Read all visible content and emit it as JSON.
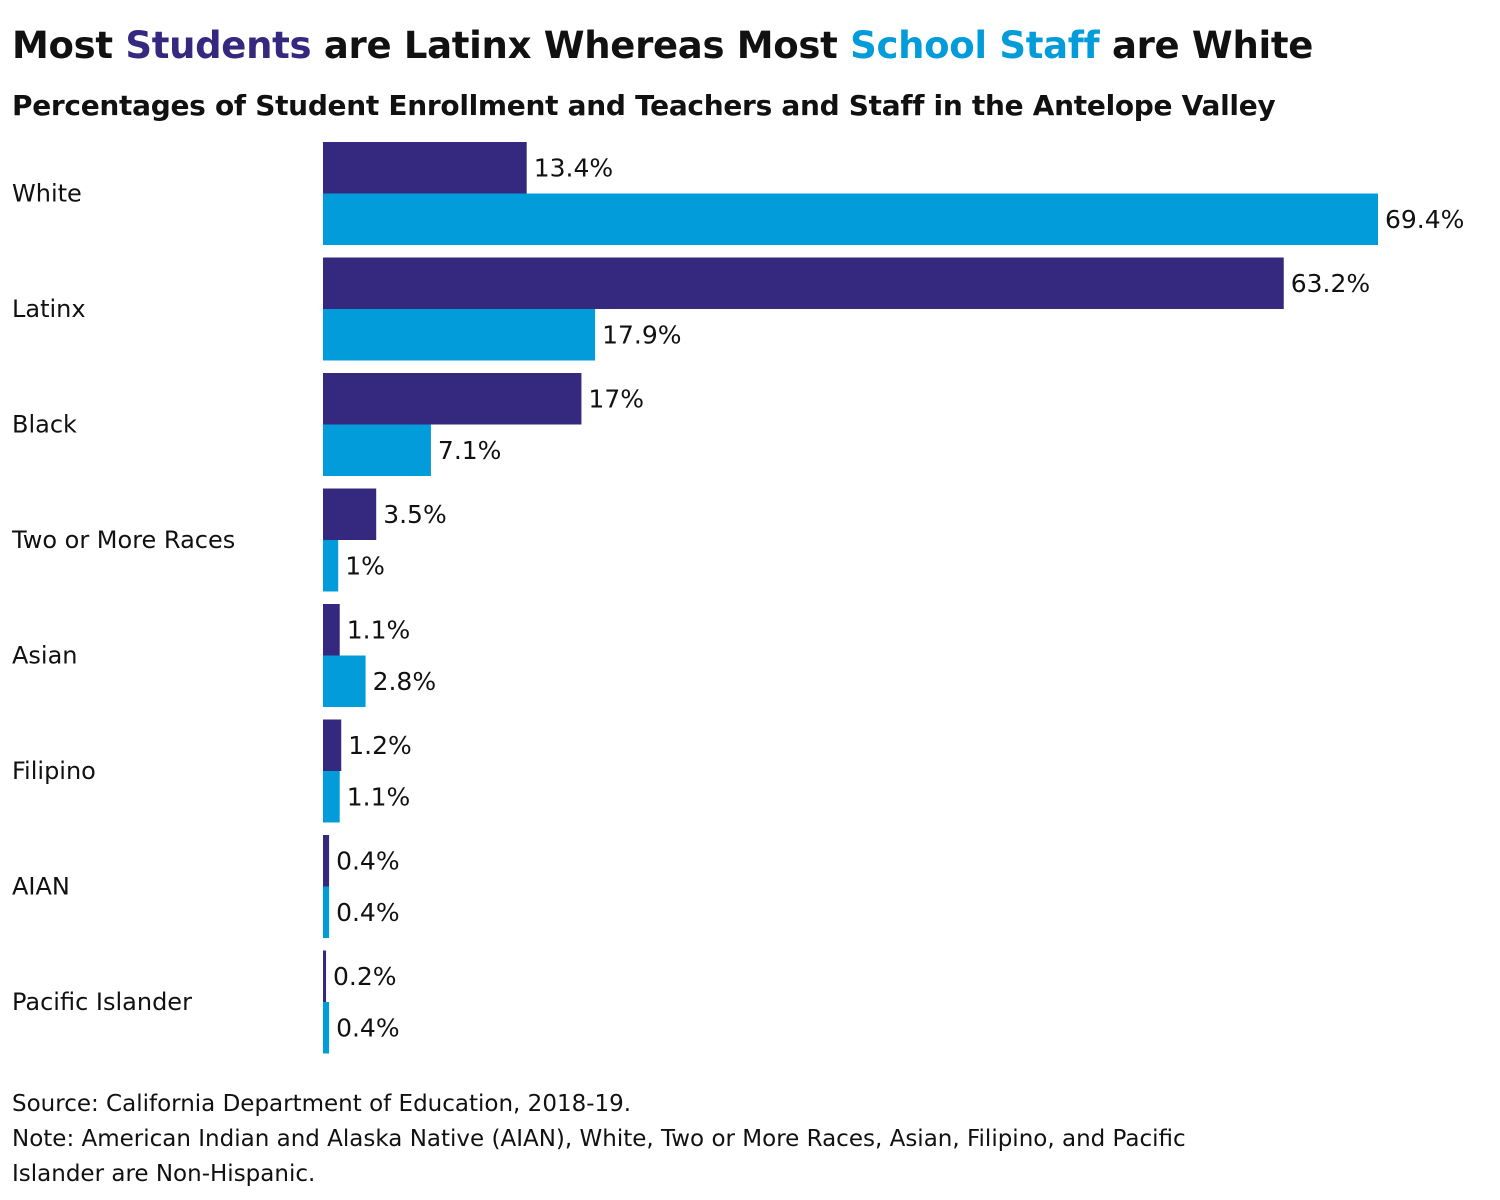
{
  "title": {
    "parts": [
      {
        "text": "Most ",
        "color": "#111111"
      },
      {
        "text": "Students",
        "color": "#34287f"
      },
      {
        "text": " are Latinx Whereas Most ",
        "color": "#111111"
      },
      {
        "text": "School Staff",
        "color": "#039cdb"
      },
      {
        "text": " are White",
        "color": "#111111"
      }
    ]
  },
  "subtitle": "Percentages of Student Enrollment and Teachers and Staff in the Antelope Valley",
  "chart_data": {
    "type": "bar",
    "orientation": "horizontal",
    "categories": [
      "White",
      "Latinx",
      "Black",
      "Two or More Races",
      "Asian",
      "Filipino",
      "AIAN",
      "Pacific Islander"
    ],
    "series": [
      {
        "key": "students",
        "color": "#34287f",
        "values": [
          13.4,
          63.2,
          17,
          3.5,
          1.1,
          1.2,
          0.4,
          0.2
        ],
        "labels": [
          "13.4%",
          "63.2%",
          "17%",
          "3.5%",
          "1.1%",
          "1.2%",
          "0.4%",
          "0.2%"
        ]
      },
      {
        "key": "staff",
        "color": "#039cdb",
        "values": [
          69.4,
          17.9,
          7.1,
          1,
          2.8,
          1.1,
          0.4,
          0.4
        ],
        "labels": [
          "69.4%",
          "17.9%",
          "7.1%",
          "1%",
          "2.8%",
          "1.1%",
          "0.4%",
          "0.4%"
        ]
      }
    ],
    "xlim": [
      0,
      69.4
    ],
    "grid": false,
    "legend": "none"
  },
  "footer": {
    "source": "Source: California Department of Education, 2018-19.",
    "note_line1": "Note: American Indian and Alaska Native (AIAN), White, Two or More Races, Asian, Filipino, and Pacific",
    "note_line2": "Islander are Non-Hispanic."
  }
}
